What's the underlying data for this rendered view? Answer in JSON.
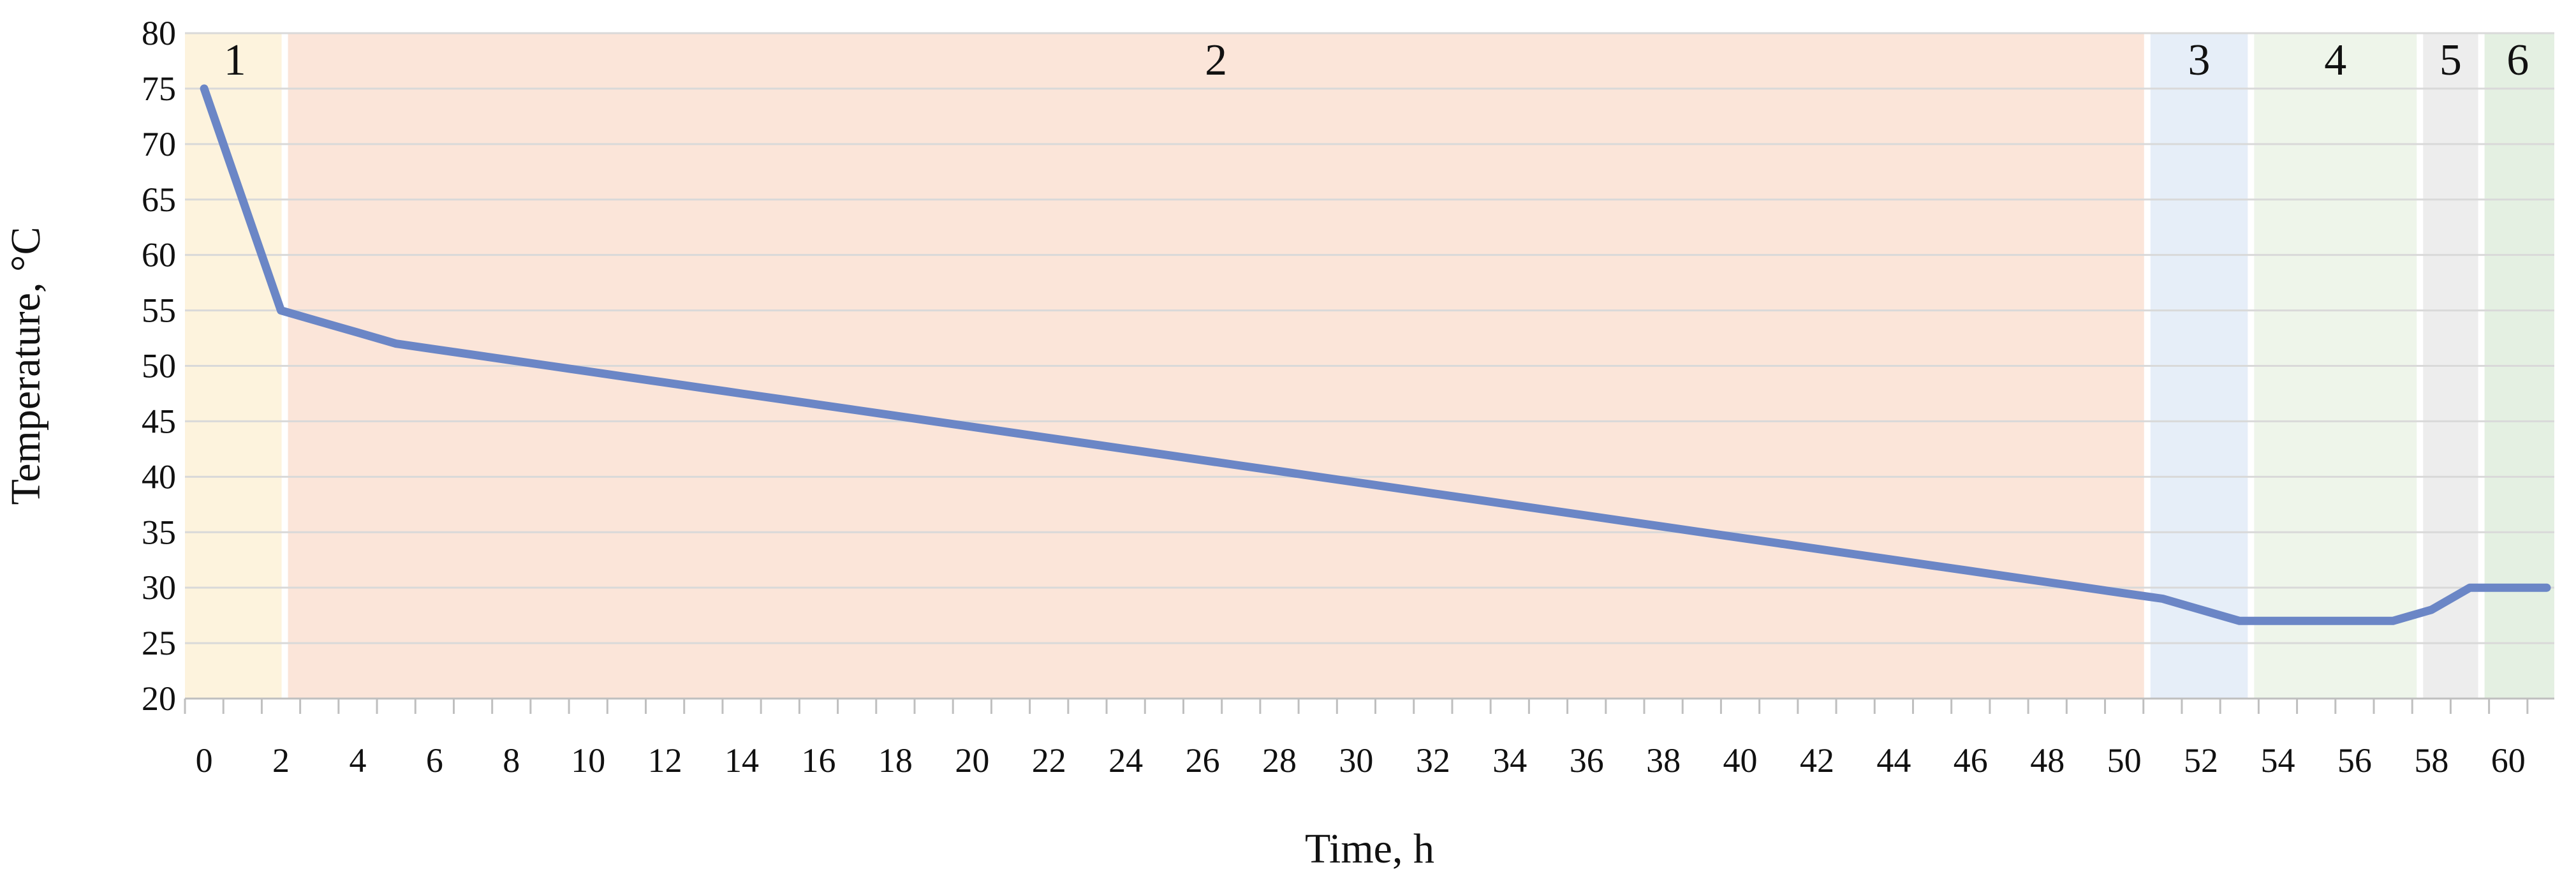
{
  "chart_data": {
    "type": "line",
    "xlabel": "Time, h",
    "ylabel": "Temperature, °C",
    "xlim": [
      -0.5,
      61.2
    ],
    "ylim": [
      20,
      80
    ],
    "y_ticks": [
      20,
      25,
      30,
      35,
      40,
      45,
      50,
      55,
      60,
      65,
      70,
      75,
      80
    ],
    "x_tick_labels": [
      0,
      2,
      4,
      6,
      8,
      10,
      12,
      14,
      16,
      18,
      20,
      22,
      24,
      26,
      28,
      30,
      32,
      34,
      36,
      38,
      40,
      42,
      44,
      46,
      48,
      50,
      52,
      54,
      56,
      58,
      60
    ],
    "grid": "horizontal",
    "series": [
      {
        "color": "#6b86c6",
        "x": [
          0,
          2,
          3,
          4,
          5,
          6,
          7,
          8,
          9,
          10,
          11,
          12,
          13,
          14,
          15,
          16,
          17,
          18,
          19,
          20,
          21,
          22,
          23,
          24,
          25,
          26,
          27,
          28,
          29,
          30,
          31,
          32,
          33,
          34,
          35,
          36,
          37,
          38,
          39,
          40,
          41,
          42,
          43,
          44,
          45,
          46,
          47,
          48,
          49,
          50,
          51,
          52,
          53,
          54,
          55,
          56,
          57,
          58,
          59,
          60,
          61
        ],
        "values": [
          75,
          55,
          54,
          53,
          52,
          51.5,
          51,
          50.5,
          50,
          49.5,
          49,
          48.5,
          48,
          47.5,
          47,
          46.5,
          46,
          45.5,
          45,
          44.5,
          44,
          43.5,
          43,
          42.5,
          42,
          41.5,
          41,
          40.5,
          40,
          39.5,
          39,
          38.5,
          38,
          37.5,
          37,
          36.5,
          36,
          35.5,
          35,
          34.5,
          34,
          33.5,
          33,
          32.5,
          32,
          31.5,
          31,
          30.5,
          30,
          29.5,
          29,
          28,
          27,
          27,
          27,
          27,
          27,
          28,
          30,
          30,
          30
        ]
      }
    ],
    "zones": [
      {
        "label": "1",
        "x0": -0.5,
        "x1": 2.1,
        "color": "#fdf3dd"
      },
      {
        "label": "2",
        "x0": 2.1,
        "x1": 50.6,
        "color": "#fbe5d9"
      },
      {
        "label": "3",
        "x0": 50.6,
        "x1": 53.3,
        "color": "#e6eef8"
      },
      {
        "label": "4",
        "x0": 53.3,
        "x1": 57.7,
        "color": "#eef5ea"
      },
      {
        "label": "5",
        "x0": 57.7,
        "x1": 59.3,
        "color": "#ededed"
      },
      {
        "label": "6",
        "x0": 59.3,
        "x1": 61.2,
        "color": "#e4f0e2"
      }
    ]
  }
}
